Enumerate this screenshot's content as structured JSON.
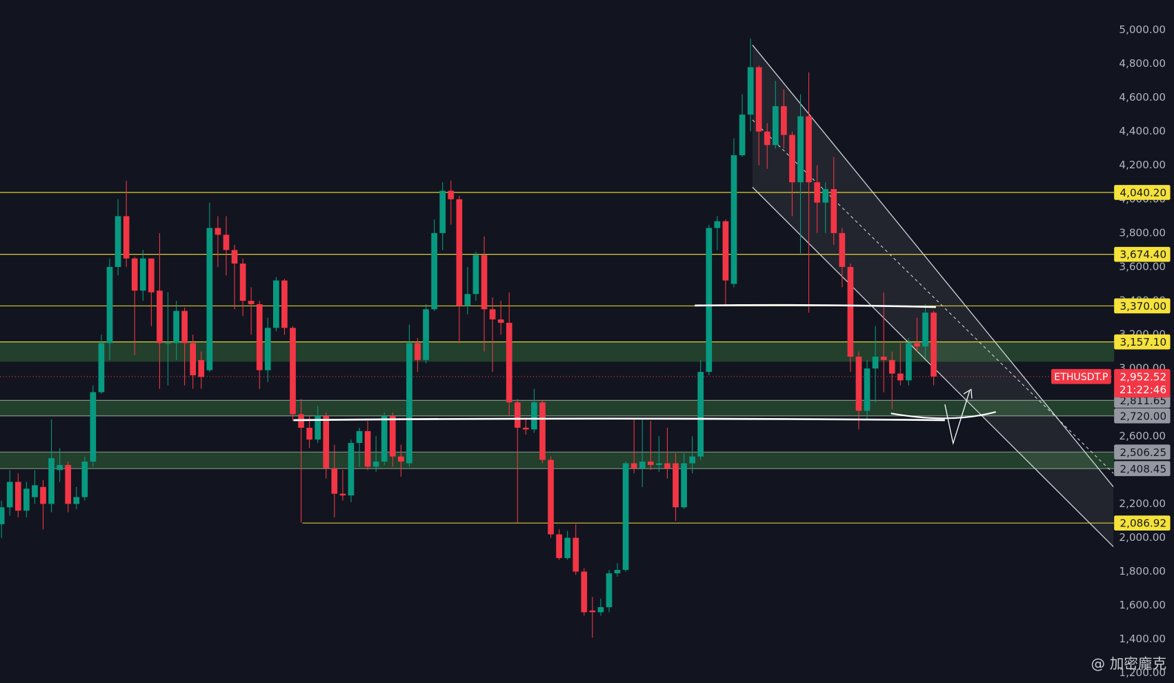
{
  "chart_data": {
    "type": "candlestick",
    "symbol": "ETHUSDT.P",
    "countdown": "21:22:46",
    "last_label": "2,952.52",
    "watermark": "@ 加密龐克",
    "colors": {
      "up": "#089981",
      "down": "#f23645",
      "background": "#12151f",
      "axis_text": "#b2b5be"
    },
    "ylim": [
      1142,
      5177
    ],
    "yticks": [
      {
        "value": 1200,
        "label": "1,200.00"
      },
      {
        "value": 1400,
        "label": "1,400.00"
      },
      {
        "value": 1600,
        "label": "1,600.00"
      },
      {
        "value": 1800,
        "label": "1,800.00"
      },
      {
        "value": 2000,
        "label": "2,000.00"
      },
      {
        "value": 2200,
        "label": "2,200.00"
      },
      {
        "value": 2400,
        "label": "2,400.00"
      },
      {
        "value": 2600,
        "label": "2,600.00"
      },
      {
        "value": 2800,
        "label": "2,800.00"
      },
      {
        "value": 3000,
        "label": "3,000.00"
      },
      {
        "value": 3200,
        "label": "3,200.00"
      },
      {
        "value": 3400,
        "label": "3,400.00"
      },
      {
        "value": 3600,
        "label": "3,600.00"
      },
      {
        "value": 3800,
        "label": "3,800.00"
      },
      {
        "value": 4000,
        "label": "4,000.00"
      },
      {
        "value": 4200,
        "label": "4,200.00"
      },
      {
        "value": 4400,
        "label": "4,400.00"
      },
      {
        "value": 4600,
        "label": "4,600.00"
      },
      {
        "value": 4800,
        "label": "4,800.00"
      },
      {
        "value": 5000,
        "label": "5,000.00"
      }
    ],
    "levels": [
      {
        "value": 4040.2,
        "label": "4,040.20",
        "color": "#f5e23a"
      },
      {
        "value": 3674.4,
        "label": "3,674.40",
        "color": "#f5e23a"
      },
      {
        "value": 3370,
        "label": "3,370.00",
        "color": "#f5e23a"
      },
      {
        "value": 3157.1,
        "label": "3,157.10",
        "color": "#f5e23a"
      },
      {
        "value": 2086.92,
        "label": "2,086.92",
        "color": "#f5e23a"
      },
      {
        "value": 2811.65,
        "label": "2,811.65",
        "color": "#9598a1"
      },
      {
        "value": 2720,
        "label": "2,720.00",
        "color": "#9598a1"
      },
      {
        "value": 2506.25,
        "label": "2,506.25",
        "color": "#9598a1"
      },
      {
        "value": 2408.45,
        "label": "2,408.45",
        "color": "#9598a1"
      }
    ],
    "zones": [
      {
        "from": 3040,
        "to": 3157.1
      },
      {
        "from": 2720,
        "to": 2811.65
      },
      {
        "from": 2408.45,
        "to": 2506.25
      }
    ],
    "open": [
      2080,
      2180,
      2330,
      2160,
      2240,
      2300,
      2200,
      2400,
      2430,
      2200,
      2240,
      2450,
      2860,
      3150,
      3600,
      3900,
      3650,
      3460,
      3650,
      3460,
      3150,
      3150,
      3340,
      3150,
      3050,
      2990,
      3830,
      3790,
      3700,
      3620,
      3400,
      3380,
      2990,
      3240,
      3520,
      3240,
      2730,
      2650,
      2580,
      2720,
      2410,
      2260,
      2250,
      2560,
      2630,
      2420,
      2450,
      2720,
      2480,
      2440,
      3150,
      3050,
      3350,
      3800,
      4050,
      4000,
      3370,
      3440,
      3670,
      3350,
      3290,
      3270,
      2800,
      2650,
      2640,
      2800,
      2460,
      2020,
      1880,
      2000,
      1800,
      1570,
      1560,
      1590,
      1790,
      1810,
      2440,
      2410,
      2450,
      2430,
      2440,
      2440,
      2180,
      2440,
      2480,
      2980,
      3830,
      3870,
      3500,
      4260,
      4500,
      4780,
      4400,
      4320,
      4550,
      4380,
      4100,
      4490,
      4100,
      3980,
      4060,
      3800,
      3600,
      3070,
      2750,
      3000,
      3070,
      3050,
      2970,
      2930,
      3150,
      3130,
      3330
    ],
    "high": [
      2220,
      2400,
      2380,
      2330,
      2400,
      2340,
      2700,
      2530,
      2450,
      2300,
      2480,
      2900,
      3200,
      3650,
      4000,
      4110,
      3660,
      3700,
      3650,
      3800,
      3450,
      3400,
      3360,
      3200,
      3100,
      3980,
      3900,
      3900,
      3730,
      3650,
      3480,
      3400,
      3300,
      3540,
      3530,
      3250,
      2820,
      2720,
      2780,
      2740,
      2550,
      2400,
      2580,
      2650,
      2690,
      2600,
      2740,
      2740,
      2550,
      3260,
      3180,
      3380,
      3880,
      4100,
      4110,
      4020,
      3600,
      3690,
      3780,
      3420,
      3400,
      3450,
      2820,
      2700,
      2880,
      2810,
      2480,
      2050,
      2040,
      2080,
      1820,
      1650,
      1640,
      1810,
      1850,
      2450,
      2700,
      2700,
      2690,
      2600,
      2650,
      2500,
      2500,
      2600,
      3050,
      3850,
      3900,
      3880,
      4360,
      4620,
      4950,
      4790,
      4450,
      4700,
      4650,
      4400,
      4620,
      4750,
      4200,
      4100,
      4250,
      3830,
      3620,
      3100,
      3050,
      3250,
      3450,
      3100,
      3150,
      3180,
      3300,
      3380,
      3340
    ],
    "low": [
      2000,
      2130,
      2120,
      2120,
      2200,
      2050,
      2150,
      2330,
      2150,
      2170,
      2220,
      2420,
      2850,
      3050,
      3550,
      3600,
      3080,
      3400,
      3250,
      2880,
      2900,
      3050,
      2900,
      2880,
      2880,
      2980,
      3600,
      3550,
      3350,
      3310,
      3200,
      2880,
      2920,
      3220,
      3200,
      2690,
      2090,
      2530,
      2560,
      2350,
      2120,
      2220,
      2210,
      2420,
      2400,
      2390,
      2430,
      2420,
      2360,
      2420,
      2980,
      3030,
      3340,
      3700,
      3850,
      3150,
      3320,
      3400,
      3100,
      2980,
      3200,
      2720,
      2090,
      2610,
      2620,
      2440,
      2000,
      1870,
      1870,
      1780,
      1540,
      1410,
      1540,
      1560,
      1770,
      1800,
      2380,
      2300,
      2400,
      2390,
      2350,
      2100,
      2170,
      2380,
      2460,
      2960,
      3700,
      3370,
      3480,
      4250,
      4400,
      4200,
      4180,
      4300,
      4300,
      3900,
      3680,
      3330,
      3800,
      3800,
      3730,
      3480,
      2980,
      2640,
      2700,
      2800,
      2860,
      2760,
      2900,
      2900,
      3100,
      3060,
      2900
    ],
    "close": [
      2180,
      2330,
      2160,
      2290,
      2310,
      2200,
      2470,
      2430,
      2200,
      2240,
      2450,
      2860,
      3150,
      3600,
      3900,
      3650,
      3460,
      3650,
      3450,
      3150,
      3150,
      3340,
      3150,
      2960,
      2950,
      3830,
      3790,
      3700,
      3620,
      3400,
      3380,
      2990,
      3240,
      3520,
      3240,
      2730,
      2650,
      2580,
      2720,
      2410,
      2260,
      2250,
      2560,
      2630,
      2420,
      2450,
      2720,
      2480,
      2450,
      3150,
      3050,
      3350,
      3800,
      4050,
      4000,
      3370,
      3440,
      3670,
      3350,
      3290,
      3270,
      2800,
      2650,
      2640,
      2800,
      2460,
      2020,
      1880,
      2000,
      1800,
      1560,
      1560,
      1590,
      1790,
      1810,
      2440,
      2410,
      2450,
      2430,
      2440,
      2410,
      2180,
      2440,
      2480,
      2980,
      3830,
      3870,
      3520,
      4260,
      4500,
      4780,
      4400,
      4320,
      4550,
      4380,
      4100,
      4490,
      4100,
      3980,
      4060,
      3800,
      3600,
      3070,
      2750,
      3000,
      3070,
      3050,
      2970,
      2930,
      3150,
      3130,
      3330,
      2952.52
    ]
  }
}
